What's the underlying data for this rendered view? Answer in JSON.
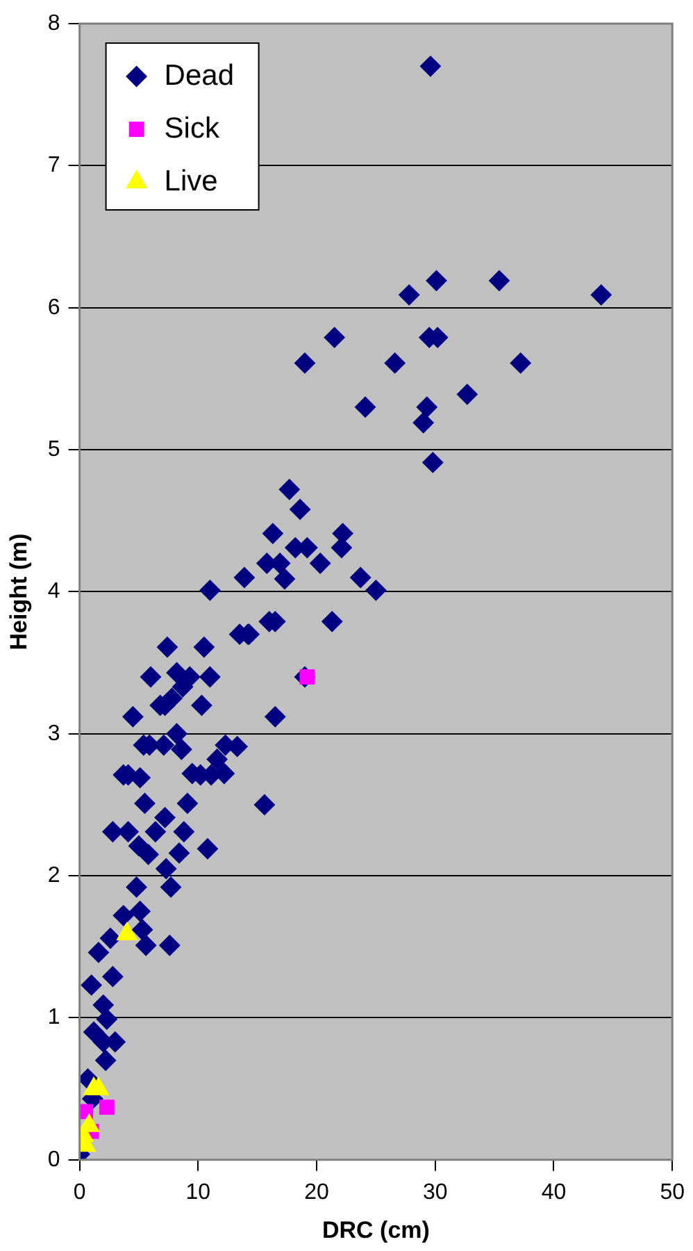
{
  "chart_data": {
    "type": "scatter",
    "xlabel": "DRC (cm)",
    "ylabel": "Height (m)",
    "xlim": [
      0,
      50
    ],
    "xticks": [
      0,
      10,
      20,
      30,
      40,
      50
    ],
    "ylim": [
      0,
      8
    ],
    "yticks": [
      0,
      1,
      2,
      3,
      4,
      5,
      6,
      7,
      8
    ],
    "grid": "y",
    "legend": "top left",
    "series": [
      {
        "name": "Dead",
        "color": "#000080",
        "marker": "diamond",
        "x": [
          44.0,
          37.2,
          35.4,
          32.7,
          29.6,
          30.1,
          30.2,
          29.5,
          29.8,
          29.3,
          29.0,
          27.8,
          26.6,
          25.0,
          24.1,
          23.7,
          22.2,
          22.1,
          21.3,
          21.5,
          20.3,
          19.2,
          19.0,
          19.0,
          18.6,
          18.2,
          17.7,
          17.3,
          16.9,
          16.5,
          16.5,
          16.3,
          15.8,
          16.0,
          15.6,
          14.3,
          13.9,
          14.2,
          13.5,
          13.3,
          12.3,
          12.2,
          11.6,
          11.1,
          11.0,
          11.0,
          10.8,
          10.5,
          10.3,
          10.2,
          9.5,
          9.3,
          9.1,
          8.8,
          8.4,
          8.7,
          8.6,
          8.2,
          8.2,
          7.8,
          7.4,
          7.7,
          7.6,
          7.3,
          7.2,
          7.1,
          7.2,
          6.8,
          6.0,
          6.4,
          5.9,
          5.8,
          5.6,
          5.3,
          5.4,
          5.5,
          5.1,
          5.0,
          4.8,
          5.1,
          4.5,
          4.1,
          3.7,
          4.1,
          3.7,
          2.8,
          2.6,
          2.8,
          1.6,
          3.0,
          2.3,
          2.0,
          2.0,
          2.2,
          1.2,
          1.0,
          0.7,
          1.1,
          0.0
        ],
        "values": [
          6.09,
          5.61,
          6.19,
          5.39,
          7.7,
          6.19,
          5.79,
          5.79,
          4.91,
          5.3,
          5.19,
          6.09,
          5.61,
          4.01,
          5.3,
          4.1,
          4.41,
          4.31,
          3.79,
          5.79,
          4.2,
          4.31,
          5.61,
          3.4,
          4.58,
          4.31,
          4.72,
          4.09,
          4.2,
          3.79,
          3.12,
          4.41,
          4.2,
          3.79,
          2.5,
          3.7,
          4.1,
          3.7,
          3.7,
          2.91,
          2.92,
          2.72,
          2.82,
          2.71,
          4.01,
          3.4,
          2.19,
          3.61,
          3.2,
          2.71,
          2.72,
          3.4,
          2.51,
          2.31,
          2.16,
          3.33,
          2.89,
          3.0,
          3.43,
          3.25,
          3.61,
          1.92,
          1.51,
          2.05,
          3.2,
          2.92,
          2.41,
          3.2,
          3.4,
          2.31,
          2.92,
          2.15,
          1.51,
          1.62,
          2.92,
          2.51,
          2.69,
          2.21,
          1.92,
          1.75,
          3.12,
          2.71,
          2.71,
          2.31,
          1.72,
          2.31,
          1.56,
          1.29,
          1.46,
          0.83,
          0.99,
          1.09,
          0.83,
          0.7,
          0.9,
          1.23,
          0.57,
          0.43,
          0.04
        ]
      },
      {
        "name": "Sick",
        "color": "#ff00ff",
        "marker": "square",
        "x": [
          19.2,
          2.3,
          0.5,
          1.0
        ],
        "values": [
          3.4,
          0.37,
          0.34,
          0.2
        ]
      },
      {
        "name": "Live",
        "color": "#ffff00",
        "marker": "triangle",
        "x": [
          4.0,
          1.6,
          1.2,
          0.8,
          0.5,
          0.3
        ],
        "values": [
          1.59,
          0.5,
          0.5,
          0.24,
          0.1,
          0.17
        ]
      }
    ]
  }
}
